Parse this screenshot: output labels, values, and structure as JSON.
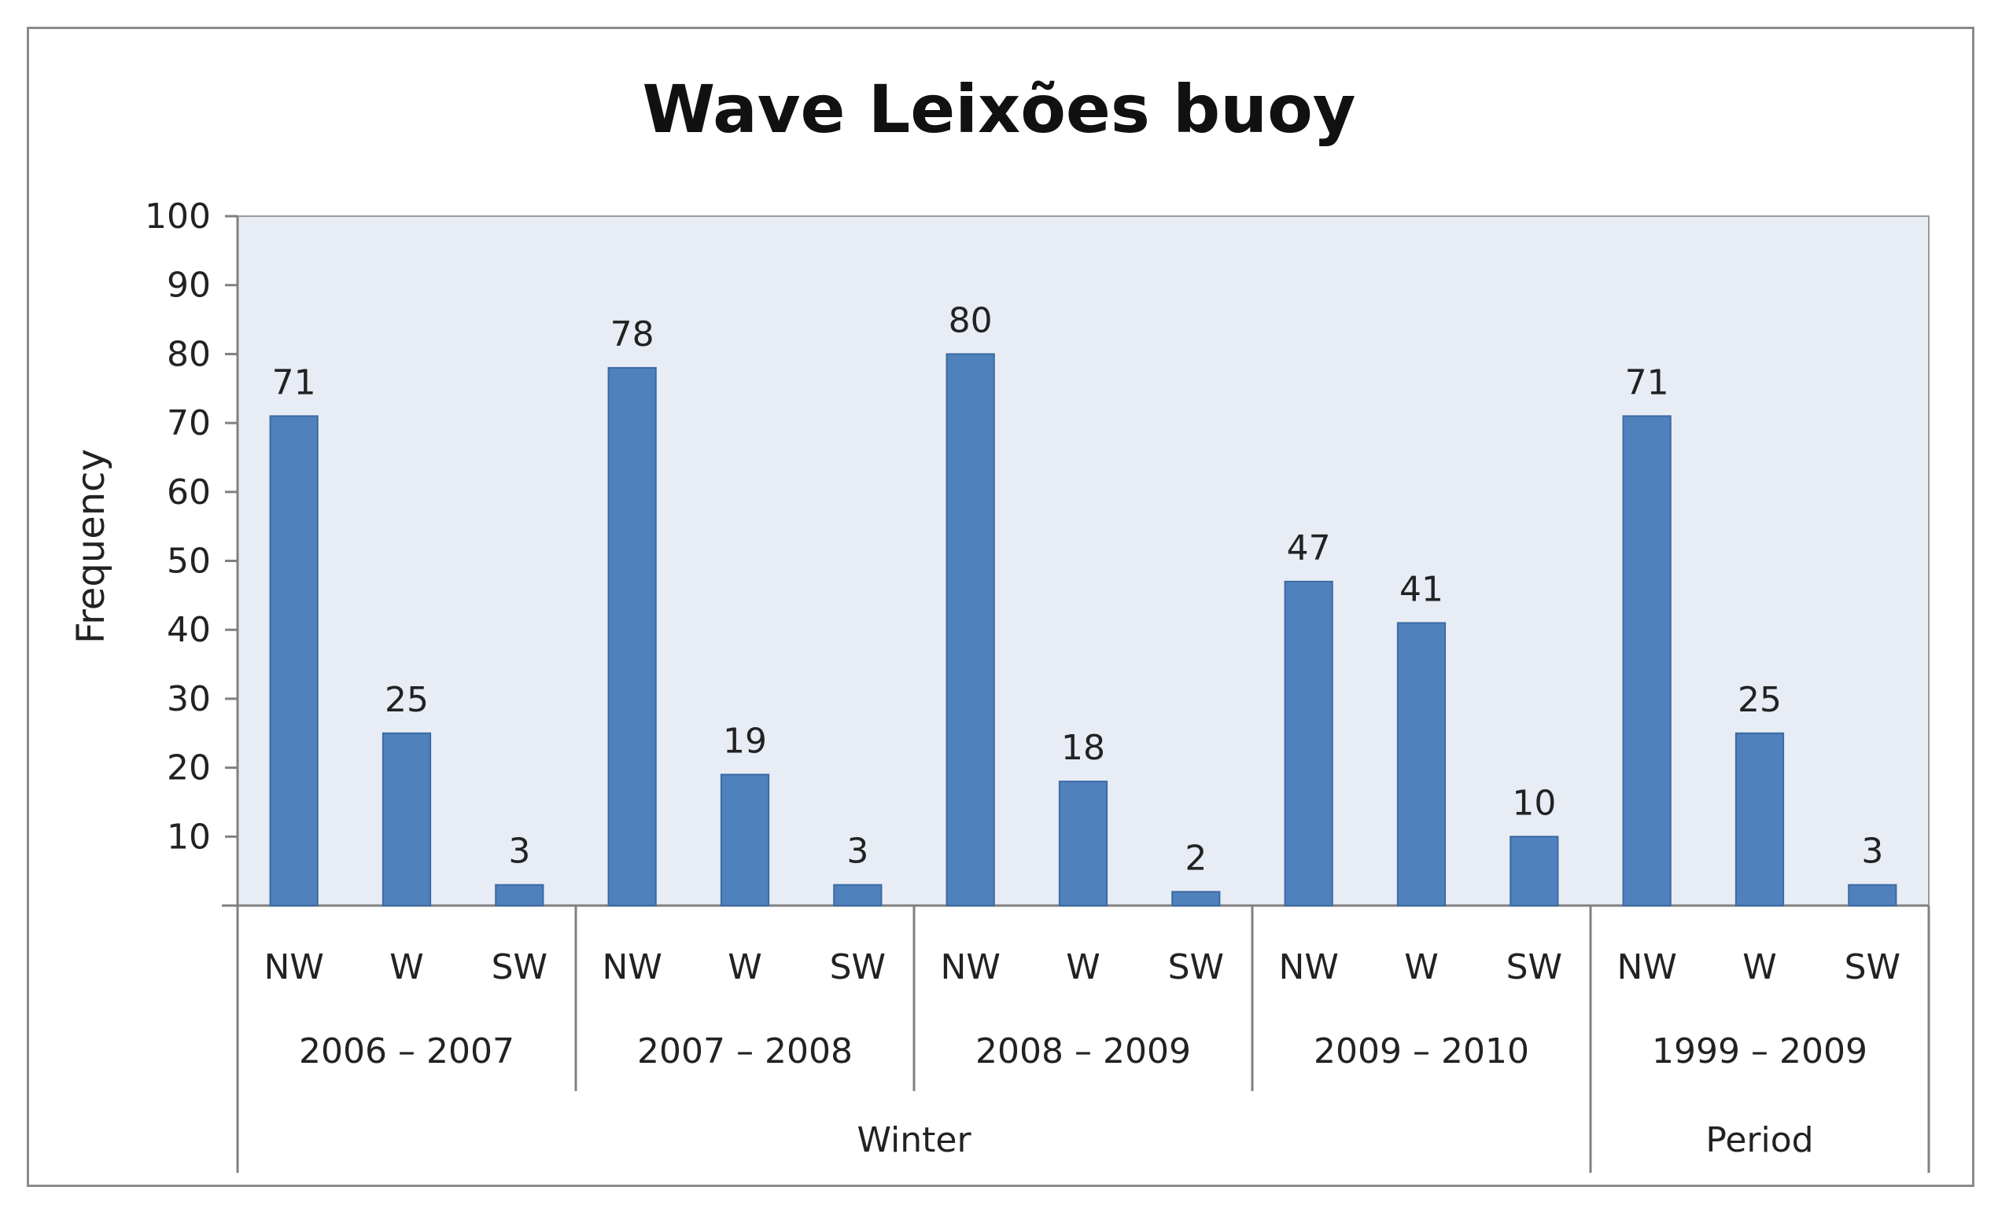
{
  "chart_data": {
    "type": "bar",
    "title": "Wave Leixões buoy",
    "ylabel": "Frequency",
    "xlabel": "",
    "ylim": [
      0,
      100
    ],
    "yticks": [
      10,
      20,
      30,
      40,
      50,
      60,
      70,
      80,
      90,
      100
    ],
    "grid": false,
    "legend": "none",
    "bar_color": "#4f81bd",
    "plot_background": "#e8ecf4",
    "groups": [
      {
        "label": "2006 – 2007",
        "bars": [
          {
            "direction": "NW",
            "value": 71
          },
          {
            "direction": "W",
            "value": 25
          },
          {
            "direction": "SW",
            "value": 3
          }
        ]
      },
      {
        "label": "2007 – 2008",
        "bars": [
          {
            "direction": "NW",
            "value": 78
          },
          {
            "direction": "W",
            "value": 19
          },
          {
            "direction": "SW",
            "value": 3
          }
        ]
      },
      {
        "label": "2008 – 2009",
        "bars": [
          {
            "direction": "NW",
            "value": 80
          },
          {
            "direction": "W",
            "value": 18
          },
          {
            "direction": "SW",
            "value": 2
          }
        ]
      },
      {
        "label": "2009 – 2010",
        "bars": [
          {
            "direction": "NW",
            "value": 47
          },
          {
            "direction": "W",
            "value": 41
          },
          {
            "direction": "SW",
            "value": 10
          }
        ]
      },
      {
        "label": "1999 – 2009",
        "bars": [
          {
            "direction": "NW",
            "value": 71
          },
          {
            "direction": "W",
            "value": 25
          },
          {
            "direction": "SW",
            "value": 3
          }
        ]
      }
    ],
    "super_groups": [
      {
        "label": "Winter",
        "group_count": 4
      },
      {
        "label": "Period",
        "group_count": 1
      }
    ]
  }
}
